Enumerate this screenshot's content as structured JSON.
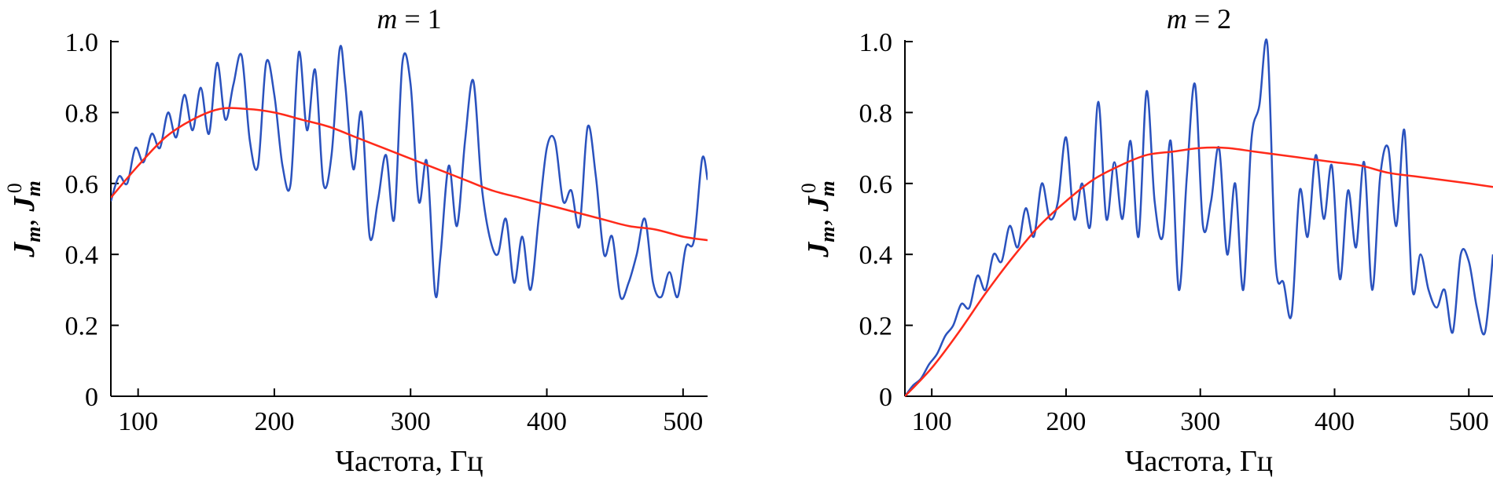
{
  "chart_data": [
    {
      "type": "line",
      "title": "m = 1",
      "title_var": "m",
      "title_value": "1",
      "xlabel": "Частота, Гц",
      "ylabel_main": "J",
      "ylabel_sub": "m",
      "ylabel_sep": ", ",
      "ylabel_main2": "J",
      "ylabel_sub2": "m",
      "ylabel_sup2": "0",
      "xlim": [
        80,
        518
      ],
      "ylim": [
        0,
        1.0
      ],
      "xticks": [
        100,
        200,
        300,
        400,
        500
      ],
      "xtick_labels": [
        "100",
        "200",
        "300",
        "400",
        "500"
      ],
      "yticks": [
        0,
        0.2,
        0.4,
        0.6,
        0.8,
        1.0
      ],
      "ytick_labels": [
        "0",
        "0.2",
        "0.4",
        "0.6",
        "0.8",
        "1.0"
      ],
      "colors": {
        "measured": "#2a52be",
        "model": "#ff2a1a"
      },
      "series": [
        {
          "id": "measured",
          "style": "wiggly",
          "x": [
            80,
            86,
            92,
            98,
            104,
            110,
            116,
            122,
            128,
            134,
            140,
            146,
            152,
            158,
            164,
            170,
            176,
            182,
            188,
            194,
            200,
            206,
            212,
            218,
            224,
            230,
            236,
            242,
            248,
            252,
            258,
            264,
            270,
            276,
            282,
            288,
            294,
            300,
            306,
            312,
            318,
            322,
            328,
            334,
            340,
            346,
            352,
            358,
            364,
            370,
            376,
            382,
            388,
            394,
            400,
            406,
            412,
            418,
            424,
            430,
            436,
            442,
            448,
            454,
            460,
            466,
            472,
            478,
            484,
            490,
            496,
            502,
            508,
            514,
            518
          ],
          "y": [
            0.55,
            0.62,
            0.6,
            0.7,
            0.66,
            0.74,
            0.7,
            0.8,
            0.73,
            0.85,
            0.75,
            0.87,
            0.74,
            0.94,
            0.78,
            0.88,
            0.96,
            0.72,
            0.65,
            0.94,
            0.85,
            0.65,
            0.6,
            0.97,
            0.75,
            0.92,
            0.6,
            0.68,
            0.98,
            0.88,
            0.64,
            0.8,
            0.45,
            0.55,
            0.68,
            0.5,
            0.94,
            0.88,
            0.55,
            0.66,
            0.29,
            0.4,
            0.65,
            0.48,
            0.72,
            0.89,
            0.6,
            0.45,
            0.4,
            0.5,
            0.32,
            0.45,
            0.3,
            0.5,
            0.7,
            0.72,
            0.55,
            0.58,
            0.48,
            0.76,
            0.62,
            0.4,
            0.45,
            0.28,
            0.32,
            0.4,
            0.5,
            0.32,
            0.28,
            0.35,
            0.28,
            0.42,
            0.44,
            0.67,
            0.61
          ]
        },
        {
          "id": "model",
          "style": "smooth",
          "x": [
            80,
            100,
            120,
            140,
            160,
            180,
            200,
            220,
            240,
            260,
            280,
            300,
            320,
            340,
            360,
            380,
            400,
            420,
            440,
            460,
            480,
            500,
            518
          ],
          "y": [
            0.56,
            0.65,
            0.73,
            0.78,
            0.81,
            0.81,
            0.8,
            0.78,
            0.76,
            0.73,
            0.7,
            0.67,
            0.64,
            0.61,
            0.58,
            0.56,
            0.54,
            0.52,
            0.5,
            0.48,
            0.47,
            0.45,
            0.44
          ]
        }
      ]
    },
    {
      "type": "line",
      "title": "m = 2",
      "title_var": "m",
      "title_value": "2",
      "xlabel": "Частота, Гц",
      "ylabel_main": "J",
      "ylabel_sub": "m",
      "ylabel_sep": ", ",
      "ylabel_main2": "J",
      "ylabel_sub2": "m",
      "ylabel_sup2": "0",
      "xlim": [
        80,
        518
      ],
      "ylim": [
        0,
        1.0
      ],
      "xticks": [
        100,
        200,
        300,
        400,
        500
      ],
      "xtick_labels": [
        "100",
        "200",
        "300",
        "400",
        "500"
      ],
      "yticks": [
        0,
        0.2,
        0.4,
        0.6,
        0.8,
        1.0
      ],
      "ytick_labels": [
        "0",
        "0.2",
        "0.4",
        "0.6",
        "0.8",
        "1.0"
      ],
      "colors": {
        "measured": "#2a52be",
        "model": "#ff2a1a"
      },
      "series": [
        {
          "id": "measured",
          "style": "wiggly",
          "x": [
            80,
            86,
            92,
            98,
            104,
            110,
            116,
            122,
            128,
            134,
            140,
            146,
            152,
            158,
            164,
            170,
            176,
            182,
            188,
            194,
            200,
            206,
            212,
            218,
            224,
            230,
            236,
            242,
            248,
            254,
            260,
            266,
            272,
            278,
            284,
            290,
            296,
            302,
            308,
            314,
            320,
            326,
            332,
            338,
            344,
            350,
            356,
            362,
            368,
            374,
            380,
            386,
            392,
            398,
            404,
            410,
            416,
            422,
            428,
            434,
            440,
            446,
            452,
            458,
            464,
            470,
            476,
            482,
            488,
            494,
            500,
            506,
            512,
            518
          ],
          "y": [
            0.0,
            0.03,
            0.05,
            0.09,
            0.12,
            0.17,
            0.2,
            0.26,
            0.25,
            0.34,
            0.3,
            0.4,
            0.38,
            0.48,
            0.42,
            0.53,
            0.45,
            0.6,
            0.5,
            0.55,
            0.73,
            0.5,
            0.6,
            0.48,
            0.83,
            0.5,
            0.66,
            0.5,
            0.72,
            0.45,
            0.86,
            0.55,
            0.45,
            0.72,
            0.3,
            0.62,
            0.88,
            0.48,
            0.55,
            0.7,
            0.4,
            0.6,
            0.3,
            0.72,
            0.82,
            0.99,
            0.38,
            0.32,
            0.23,
            0.58,
            0.45,
            0.68,
            0.5,
            0.65,
            0.33,
            0.58,
            0.42,
            0.66,
            0.3,
            0.62,
            0.7,
            0.48,
            0.75,
            0.3,
            0.4,
            0.3,
            0.25,
            0.3,
            0.18,
            0.4,
            0.38,
            0.25,
            0.18,
            0.4
          ]
        },
        {
          "id": "model",
          "style": "smooth",
          "x": [
            80,
            100,
            120,
            140,
            160,
            180,
            200,
            220,
            240,
            260,
            280,
            300,
            320,
            340,
            360,
            380,
            400,
            420,
            440,
            460,
            480,
            500,
            518
          ],
          "y": [
            0.0,
            0.08,
            0.18,
            0.29,
            0.39,
            0.48,
            0.55,
            0.61,
            0.65,
            0.68,
            0.69,
            0.7,
            0.7,
            0.69,
            0.68,
            0.67,
            0.66,
            0.65,
            0.63,
            0.62,
            0.61,
            0.6,
            0.59
          ]
        }
      ]
    }
  ]
}
